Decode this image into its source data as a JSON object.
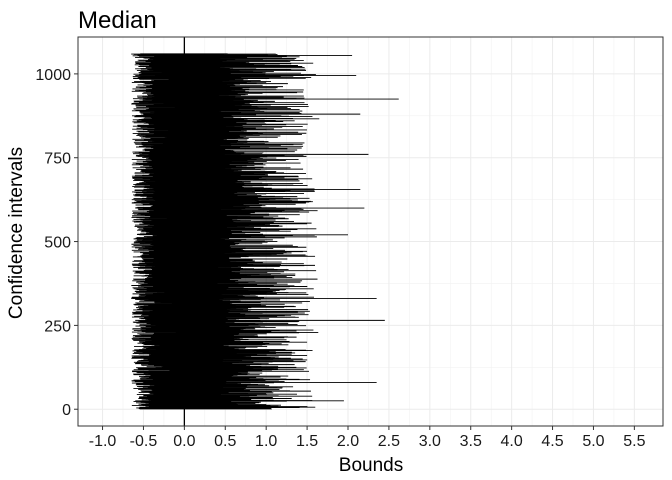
{
  "chart_data": {
    "type": "line",
    "title": "Median",
    "xlabel": "Bounds",
    "ylabel": "Confidence intervals",
    "xlim": [
      -1.3,
      5.85
    ],
    "ylim": [
      -50,
      1110
    ],
    "x_ticks": [
      -1.0,
      -0.5,
      0.0,
      0.5,
      1.0,
      1.5,
      2.0,
      2.5,
      3.0,
      3.5,
      4.0,
      4.5,
      5.0,
      5.5
    ],
    "x_tick_labels": [
      "-1.0",
      "-0.5",
      "0.0",
      "0.5",
      "1.0",
      "1.5",
      "2.0",
      "2.5",
      "3.0",
      "3.5",
      "4.0",
      "4.5",
      "5.0",
      "5.5"
    ],
    "y_ticks": [
      0,
      250,
      500,
      750,
      1000
    ],
    "y_tick_labels": [
      "0",
      "250",
      "500",
      "750",
      "1000"
    ],
    "reference_line_x": 0,
    "n_intervals": 1060,
    "lower_bound_range": [
      -0.72,
      -0.05
    ],
    "upper_bound_range": [
      0.3,
      2.62
    ],
    "notable_intervals": [
      {
        "y": 6,
        "lower": -0.55,
        "upper": 1.6
      },
      {
        "y": 25,
        "lower": -0.6,
        "upper": 1.95
      },
      {
        "y": 80,
        "lower": -0.5,
        "upper": 2.35
      },
      {
        "y": 200,
        "lower": -0.55,
        "upper": 1.5
      },
      {
        "y": 265,
        "lower": -0.6,
        "upper": 2.45
      },
      {
        "y": 330,
        "lower": -0.65,
        "upper": 2.35
      },
      {
        "y": 520,
        "lower": -0.55,
        "upper": 2.0
      },
      {
        "y": 600,
        "lower": -0.6,
        "upper": 2.2
      },
      {
        "y": 655,
        "lower": -0.5,
        "upper": 2.15
      },
      {
        "y": 760,
        "lower": -0.55,
        "upper": 2.25
      },
      {
        "y": 880,
        "lower": -0.5,
        "upper": 2.15
      },
      {
        "y": 925,
        "lower": -0.55,
        "upper": 2.62
      },
      {
        "y": 995,
        "lower": -0.6,
        "upper": 2.1
      },
      {
        "y": 1055,
        "lower": -0.45,
        "upper": 2.05
      }
    ],
    "grid": true,
    "line_color": "#000000",
    "grid_color": "#ebebeb",
    "background": "#ffffff"
  }
}
